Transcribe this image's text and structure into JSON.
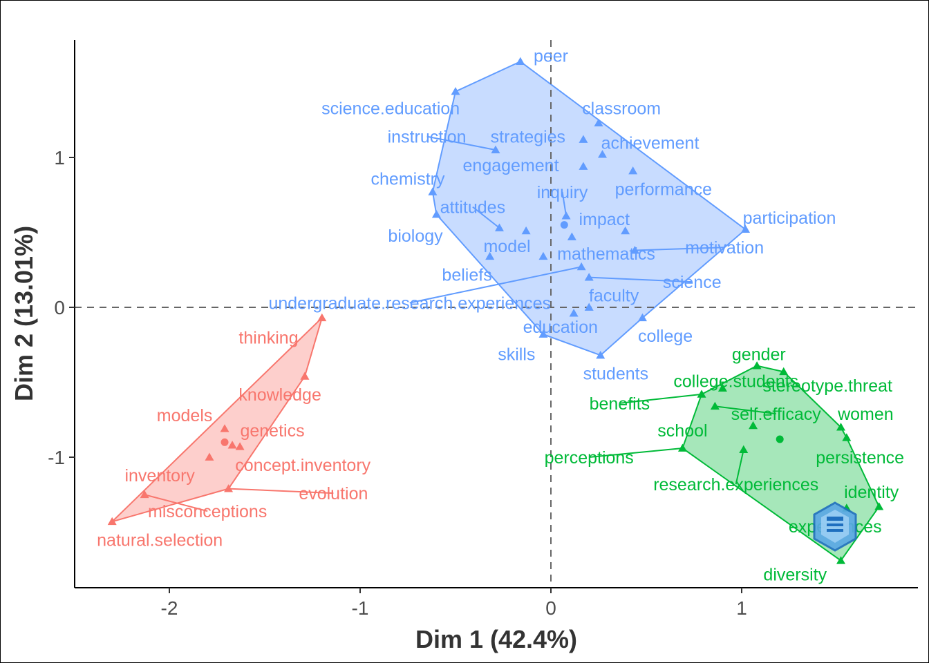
{
  "chart_data": {
    "type": "scatter",
    "title": "",
    "xlabel": "Dim 1 (42.4%)",
    "ylabel": "Dim 2 (13.01%)",
    "xlim": [
      -2.5,
      1.93
    ],
    "ylim": [
      -1.86,
      1.77
    ],
    "x_ticks": [
      -2,
      -1,
      0,
      1
    ],
    "y_ticks": [
      -1,
      0,
      1
    ],
    "x_tick_labels": [
      "-2",
      "-1",
      "0",
      "1"
    ],
    "y_tick_labels": [
      "-1",
      "0",
      "1"
    ],
    "reference_lines": {
      "x": 0,
      "y": 0,
      "style": "dashed"
    },
    "grid": false,
    "legend": "none",
    "clusters": [
      {
        "color": "#F8766D",
        "centroid": [
          -1.71,
          -0.9
        ],
        "points": [
          {
            "name": "thinking",
            "x": -1.2,
            "y": -0.07,
            "label_x": -1.48,
            "label_y": -0.2
          },
          {
            "name": "knowledge",
            "x": -1.29,
            "y": -0.46,
            "label_x": -1.42,
            "label_y": -0.58
          },
          {
            "name": "models",
            "x": -1.71,
            "y": -0.81,
            "label_x": -1.92,
            "label_y": -0.72
          },
          {
            "name": "genetics",
            "x": -1.67,
            "y": -0.92,
            "label_x": -1.46,
            "label_y": -0.82
          },
          {
            "name": "concept.inventory",
            "x": -1.63,
            "y": -0.93,
            "label_x": -1.3,
            "label_y": -1.05
          },
          {
            "name": "inventory",
            "x": -1.79,
            "y": -1.0,
            "label_x": -2.05,
            "label_y": -1.12
          },
          {
            "name": "evolution",
            "x": -1.69,
            "y": -1.21,
            "label_x": -1.14,
            "label_y": -1.24,
            "leader": true
          },
          {
            "name": "misconceptions",
            "x": -2.13,
            "y": -1.25,
            "label_x": -1.8,
            "label_y": -1.36,
            "leader": true
          },
          {
            "name": "natural.selection",
            "x": -2.3,
            "y": -1.43,
            "label_x": -2.05,
            "label_y": -1.55
          }
        ]
      },
      {
        "color": "#619CFF",
        "centroid": [
          0.07,
          0.55
        ],
        "points": [
          {
            "name": "peer",
            "x": -0.16,
            "y": 1.64,
            "label_x": 0.0,
            "label_y": 1.68
          },
          {
            "name": "science.education",
            "x": -0.5,
            "y": 1.44,
            "label_x": -0.84,
            "label_y": 1.33
          },
          {
            "name": "classroom",
            "x": 0.25,
            "y": 1.23,
            "label_x": 0.37,
            "label_y": 1.33
          },
          {
            "name": "instruction",
            "x": -0.29,
            "y": 1.05,
            "label_x": -0.65,
            "label_y": 1.14,
            "leader": true
          },
          {
            "name": "strategies",
            "x": 0.17,
            "y": 1.12,
            "label_x": -0.12,
            "label_y": 1.14
          },
          {
            "name": "achievement",
            "x": 0.27,
            "y": 1.02,
            "label_x": 0.52,
            "label_y": 1.1
          },
          {
            "name": "engagement",
            "x": 0.17,
            "y": 0.94,
            "label_x": -0.21,
            "label_y": 0.95
          },
          {
            "name": "performance",
            "x": 0.43,
            "y": 0.91,
            "label_x": 0.59,
            "label_y": 0.79
          },
          {
            "name": "chemistry",
            "x": -0.62,
            "y": 0.77,
            "label_x": -0.75,
            "label_y": 0.86
          },
          {
            "name": "inquiry",
            "x": 0.08,
            "y": 0.61,
            "label_x": 0.06,
            "label_y": 0.77,
            "leader": true
          },
          {
            "name": "attitudes",
            "x": -0.27,
            "y": 0.53,
            "label_x": -0.41,
            "label_y": 0.67,
            "leader": true
          },
          {
            "name": "biology",
            "x": -0.6,
            "y": 0.62,
            "label_x": -0.71,
            "label_y": 0.48
          },
          {
            "name": "participation",
            "x": 1.02,
            "y": 0.52,
            "label_x": 1.25,
            "label_y": 0.6
          },
          {
            "name": "impact",
            "x": 0.39,
            "y": 0.51,
            "label_x": 0.28,
            "label_y": 0.59
          },
          {
            "name": "mathematics",
            "x": 0.11,
            "y": 0.47,
            "label_x": 0.29,
            "label_y": 0.36
          },
          {
            "name": "model",
            "x": -0.13,
            "y": 0.51,
            "label_x": -0.23,
            "label_y": 0.41
          },
          {
            "name": "motivation",
            "x": 0.44,
            "y": 0.38,
            "label_x": 0.91,
            "label_y": 0.4,
            "leader": true
          },
          {
            "name": "beliefs",
            "x": -0.32,
            "y": 0.34,
            "label_x": -0.44,
            "label_y": 0.22
          },
          {
            "name": "science",
            "x": 0.2,
            "y": 0.2,
            "label_x": 0.74,
            "label_y": 0.17,
            "leader": true
          },
          {
            "name": "undergraduate.research.experiences",
            "x": 0.16,
            "y": 0.27,
            "label_x": -0.74,
            "label_y": 0.03,
            "leader": true
          },
          {
            "name": "faculty",
            "x": 0.2,
            "y": 0.0,
            "label_x": 0.33,
            "label_y": 0.08
          },
          {
            "name": "education",
            "x": 0.12,
            "y": -0.04,
            "label_x": 0.05,
            "label_y": -0.13
          },
          {
            "name": "college",
            "x": 0.48,
            "y": -0.07,
            "label_x": 0.6,
            "label_y": -0.19
          },
          {
            "name": "skills",
            "x": -0.04,
            "y": -0.18,
            "label_x": -0.18,
            "label_y": -0.31
          },
          {
            "name": "students",
            "x": 0.26,
            "y": -0.32,
            "label_x": 0.34,
            "label_y": -0.44
          },
          {
            "name": "",
            "x": -0.04,
            "y": 0.34
          }
        ]
      },
      {
        "color": "#00BA38",
        "centroid": [
          1.2,
          -0.88
        ],
        "points": [
          {
            "name": "gender",
            "x": 1.08,
            "y": -0.39,
            "label_x": 1.09,
            "label_y": -0.31
          },
          {
            "name": "college.students",
            "x": 0.9,
            "y": -0.54,
            "label_x": 0.97,
            "label_y": -0.49
          },
          {
            "name": "stereotype.threat",
            "x": 1.22,
            "y": -0.43,
            "label_x": 1.45,
            "label_y": -0.52
          },
          {
            "name": "benefits",
            "x": 0.79,
            "y": -0.58,
            "label_x": 0.36,
            "label_y": -0.64,
            "leader": true
          },
          {
            "name": "self.efficacy",
            "x": 0.86,
            "y": -0.66,
            "label_x": 1.18,
            "label_y": -0.71,
            "leader": true
          },
          {
            "name": "women",
            "x": 1.52,
            "y": -0.8,
            "label_x": 1.65,
            "label_y": -0.71
          },
          {
            "name": "school",
            "x": 1.06,
            "y": -0.79,
            "label_x": 0.69,
            "label_y": -0.82
          },
          {
            "name": "persistence",
            "x": 1.55,
            "y": -0.87,
            "label_x": 1.62,
            "label_y": -1.0
          },
          {
            "name": "perceptions",
            "x": 0.69,
            "y": -0.94,
            "label_x": 0.2,
            "label_y": -1.0,
            "leader": true
          },
          {
            "name": "research.experiences",
            "x": 1.01,
            "y": -0.95,
            "label_x": 0.97,
            "label_y": -1.18,
            "leader": true
          },
          {
            "name": "identity",
            "x": 1.72,
            "y": -1.33,
            "label_x": 1.68,
            "label_y": -1.23
          },
          {
            "name": "experiences",
            "x": 1.55,
            "y": -1.34,
            "label_x": 1.49,
            "label_y": -1.46
          },
          {
            "name": "diversity",
            "x": 1.52,
            "y": -1.69,
            "label_x": 1.28,
            "label_y": -1.78
          }
        ]
      }
    ],
    "hulls": [
      {
        "cluster": 0,
        "vertices": [
          [
            -1.2,
            -0.07
          ],
          [
            -1.29,
            -0.46
          ],
          [
            -1.69,
            -1.21
          ],
          [
            -2.3,
            -1.43
          ]
        ]
      },
      {
        "cluster": 1,
        "vertices": [
          [
            -0.16,
            1.64
          ],
          [
            1.02,
            0.52
          ],
          [
            0.48,
            -0.07
          ],
          [
            0.26,
            -0.32
          ],
          [
            -0.04,
            -0.18
          ],
          [
            -0.6,
            0.62
          ],
          [
            -0.62,
            0.77
          ],
          [
            -0.5,
            1.44
          ]
        ]
      },
      {
        "cluster": 2,
        "vertices": [
          [
            1.08,
            -0.39
          ],
          [
            1.22,
            -0.43
          ],
          [
            1.52,
            -0.8
          ],
          [
            1.55,
            -0.87
          ],
          [
            1.72,
            -1.33
          ],
          [
            1.52,
            -1.69
          ],
          [
            0.69,
            -0.94
          ],
          [
            0.79,
            -0.58
          ]
        ]
      }
    ]
  }
}
